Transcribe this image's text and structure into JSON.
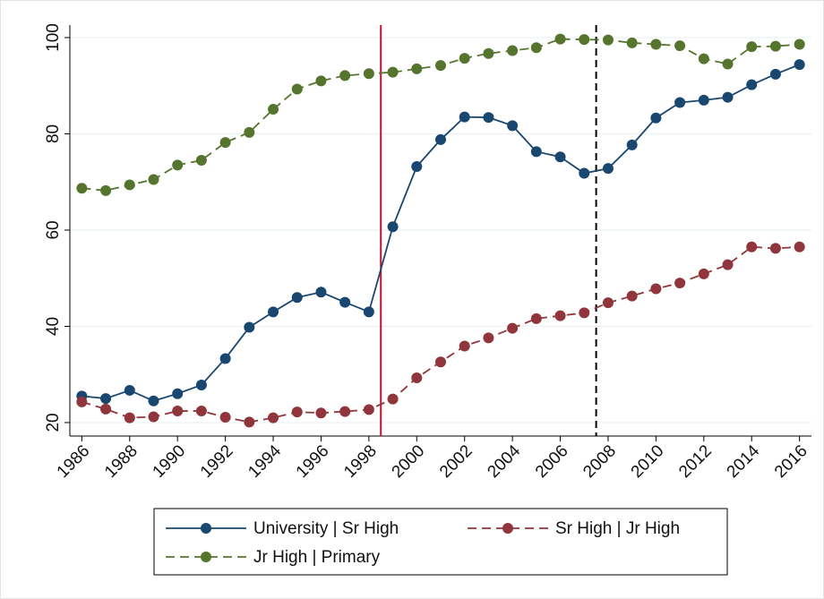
{
  "chart_data": {
    "type": "line",
    "x": [
      1986,
      1987,
      1988,
      1989,
      1990,
      1991,
      1992,
      1993,
      1994,
      1995,
      1996,
      1997,
      1998,
      1999,
      2000,
      2001,
      2002,
      2003,
      2004,
      2005,
      2006,
      2007,
      2008,
      2009,
      2010,
      2011,
      2012,
      2013,
      2014,
      2015,
      2016
    ],
    "series": [
      {
        "name": "University | Sr High",
        "color": "#1a476f",
        "dash": "solid",
        "values": [
          25.5,
          25,
          26.7,
          24.5,
          26,
          27.8,
          33.3,
          39.8,
          43,
          46,
          47.1,
          45,
          43,
          60.7,
          73.2,
          78.8,
          83.5,
          83.4,
          81.7,
          76.3,
          75.2,
          71.8,
          72.8,
          77.7,
          83.3,
          86.5,
          87,
          87.6,
          90.2,
          92.4,
          94.4
        ]
      },
      {
        "name": "Sr High | Jr High",
        "color": "#90353b",
        "dash": "dashed",
        "values": [
          24.3,
          22.8,
          21,
          21.2,
          22.4,
          22.4,
          21.1,
          20.1,
          21,
          22.2,
          22,
          22.3,
          22.7,
          24.9,
          29.3,
          32.6,
          35.9,
          37.6,
          39.6,
          41.6,
          42.2,
          42.8,
          44.9,
          46.3,
          47.8,
          49,
          50.9,
          52.8,
          56.5,
          56.2,
          56.5
        ]
      },
      {
        "name": "Jr High | Primary",
        "color": "#55752f",
        "dash": "dashed",
        "values": [
          68.7,
          68.2,
          69.4,
          70.5,
          73.5,
          74.5,
          78.2,
          80.3,
          85.1,
          89.3,
          91,
          92.1,
          92.5,
          92.8,
          93.5,
          94.2,
          95.7,
          96.7,
          97.3,
          97.9,
          99.7,
          99.6,
          99.5,
          98.9,
          98.6,
          98.3,
          95.6,
          94.5,
          98.1,
          98.2,
          98.6
        ]
      }
    ],
    "xlim": [
      1985.5,
      2016.5
    ],
    "xticks": [
      1986,
      1988,
      1990,
      1992,
      1994,
      1996,
      1998,
      2000,
      2002,
      2004,
      2006,
      2008,
      2010,
      2012,
      2014,
      2016
    ],
    "ylim": [
      17.2,
      102.6
    ],
    "yticks": [
      20,
      40,
      60,
      80,
      100
    ],
    "grid": true,
    "vlines": [
      {
        "x": 1998.5,
        "color": "#c8102e",
        "dash": "solid"
      },
      {
        "x": 2007.5,
        "color": "#000000",
        "dash": "dashed"
      }
    ],
    "legend": "bottom"
  }
}
